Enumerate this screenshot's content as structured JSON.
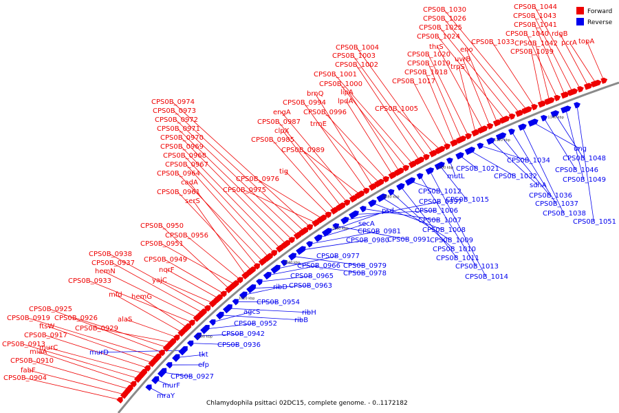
{
  "caption": "Chlamydophila psittaci 02DC15, complete genome. - 0..1172182",
  "legend": [
    {
      "label": "Forward",
      "color": "#ee0000"
    },
    {
      "label": "Reverse",
      "color": "#0000ee"
    }
  ],
  "colors": {
    "forward": "#ee0000",
    "reverse": "#0000ee",
    "backbone": "#8a8a8a"
  },
  "ticks": [
    "1000 kbp",
    "1020 kbp",
    "1040 kbp",
    "1060 kbp",
    "1080 kbp",
    "1100 kbp",
    "1120 kbp",
    "1140 kbp"
  ],
  "forward_labels": [
    "CPS0B_0904",
    "fabF",
    "CPS0B_0910",
    "miaA",
    "CPS0B_0913",
    "murC",
    "CPS0B_0917",
    "ftsW",
    "CPS0B_0919",
    "CPS0B_0925",
    "CPS0B_0926",
    "CPS0B_0929",
    "alaS",
    "mfd",
    "hemG",
    "CPS0B_0933",
    "hemN",
    "CPS0B_0937",
    "CPS0B_0938",
    "yajC",
    "nqrF",
    "CPS0B_0949",
    "CPS0B_0950",
    "CPS0B_0951",
    "CPS0B_0956",
    "serS",
    "CPS0B_0961",
    "cadA",
    "CPS0B_0964",
    "CPS0B_0967",
    "CPS0B_0968",
    "CPS0B_0969",
    "CPS0B_0970",
    "CPS0B_0971",
    "CPS0B_0972",
    "CPS0B_0973",
    "CPS0B_0974",
    "CPS0B_0975",
    "CPS0B_0976",
    "tig",
    "CPS0B_0985",
    "clpX",
    "CPS0B_0987",
    "engA",
    "CPS0B_0989",
    "CPS0B_0994",
    "brnQ",
    "trmE",
    "CPS0B_0996",
    "lpdA",
    "lipA",
    "CPS0B_1000",
    "CPS0B_1001",
    "CPS0B_1002",
    "CPS0B_1003",
    "CPS0B_1004",
    "CPS0B_1005",
    "CPS0B_1017",
    "CPS0B_1018",
    "CPS0B_1019",
    "CPS0B_1020",
    "trpS",
    "thrS",
    "uvrB",
    "eno",
    "CPS0B_1024",
    "CPS0B_1025",
    "CPS0B_1026",
    "CPS0B_1030",
    "CPS0B_1033",
    "CPS0B_1039",
    "CPS0B_1042",
    "CPS0B_1040",
    "CPS0B_1041",
    "CPS0B_1043",
    "CPS0B_1044",
    "rdgB",
    "pcrA",
    "topA"
  ],
  "reverse_labels": [
    "mraY",
    "murF",
    "CPS0B_0927",
    "efp",
    "tkt",
    "murD",
    "CPS0B_0936",
    "CPS0B_0942",
    "CPS0B_0952",
    "agcS",
    "ribB",
    "ribH",
    "CPS0B_0954",
    "ribD",
    "CPS0B_0963",
    "CPS0B_0965",
    "CPS0B_0966",
    "CPS0B_0977",
    "CPS0B_0978",
    "CPS0B_0979",
    "CPS0B_0980",
    "CPS0B_0981",
    "secA",
    "psd",
    "CPS0B_0991",
    "CPS0B_0997",
    "CPS0B_1006",
    "CPS0B_1007",
    "CPS0B_1008",
    "CPS0B_1009",
    "CPS0B_1010",
    "CPS0B_1011",
    "CPS0B_1012",
    "CPS0B_1013",
    "CPS0B_1014",
    "CPS0B_1015",
    "mutL",
    "CPS0B_1021",
    "CPS0B_1032",
    "CPS0B_1034",
    "sdhA",
    "CPS0B_1036",
    "CPS0B_1037",
    "CPS0B_1038",
    "ung",
    "CPS0B_1046",
    "CPS0B_1048",
    "CPS0B_1049",
    "CPS0B_1051"
  ]
}
